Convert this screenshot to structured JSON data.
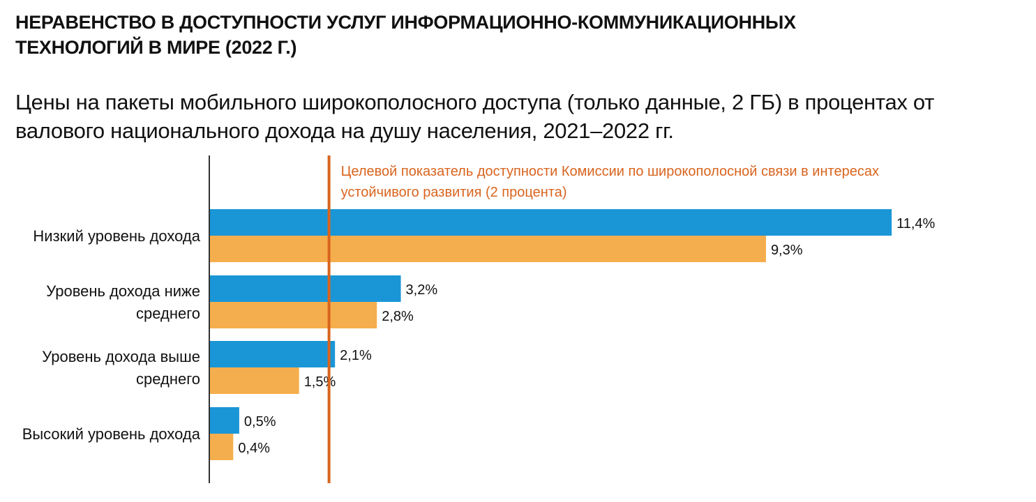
{
  "title": "НЕРАВЕНСТВО В ДОСТУПНОСТИ УСЛУГ ИНФОРМАЦИОННО-КОММУНИКАЦИОННЫХ ТЕХНОЛОГИЙ В МИРЕ (2022 Г.)",
  "subtitle": "Цены на пакеты мобильного широкополосного доступа (только данные, 2 ГБ) в процентах от валового национального дохода на душу населения, 2021–2022 гг.",
  "colors": {
    "series_1": "#1a96d6",
    "series_2": "#f5ae4d",
    "target_line": "#d9641e",
    "axis": "#333333",
    "text": "#111111"
  },
  "chart_data": {
    "type": "bar",
    "orientation": "horizontal",
    "categories": [
      [
        "Низкий уровень дохода"
      ],
      [
        "Уровень дохода ниже",
        "среднего"
      ],
      [
        "Уровень дохода выше",
        "среднего"
      ],
      [
        "Высокий уровень дохода"
      ]
    ],
    "series": [
      {
        "values": [
          11.4,
          3.2,
          2.1,
          0.5
        ],
        "labels": [
          "11,4%",
          "3,2%",
          "2,1%",
          "0,5%"
        ],
        "color": "#1a96d6"
      },
      {
        "values": [
          9.3,
          2.8,
          1.5,
          0.4
        ],
        "labels": [
          "9,3%",
          "2,8%",
          "1,5%",
          "0,4%"
        ],
        "color": "#f5ae4d"
      }
    ],
    "reference_line": {
      "value": 2,
      "label_lines": [
        "Целевой показатель доступности Комиссии по широкополосной связи в интересах",
        "устойчивого развития (2 процента)"
      ],
      "color": "#d9641e"
    },
    "xlim": [
      0,
      11.4
    ],
    "grid": false,
    "legend": "none"
  }
}
